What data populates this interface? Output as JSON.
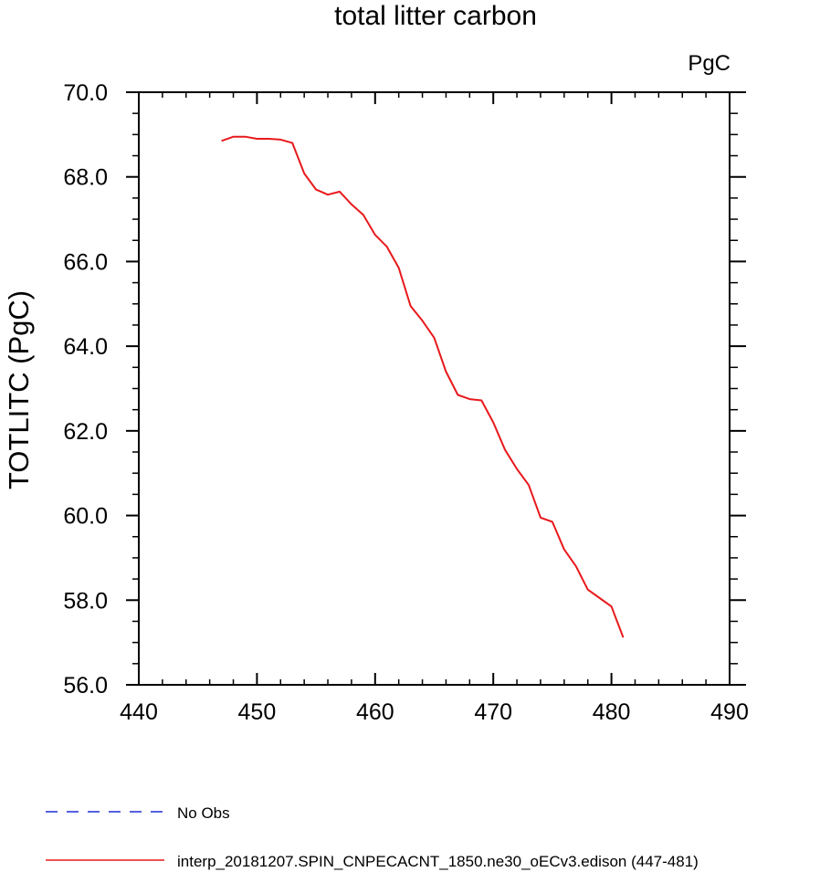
{
  "chart_data": {
    "type": "line",
    "title": "total litter carbon",
    "units_label": "PgC",
    "xlabel": "",
    "ylabel": "TOTLITC  (PgC)",
    "xlim": [
      440,
      490
    ],
    "ylim": [
      56.0,
      70.0
    ],
    "x_ticks": [
      440,
      450,
      460,
      470,
      480,
      490
    ],
    "x_tick_labels": [
      "440",
      "450",
      "460",
      "470",
      "480",
      "490"
    ],
    "y_ticks": [
      56,
      58,
      60,
      62,
      64,
      66,
      68,
      70
    ],
    "y_tick_labels": [
      "56.0",
      "58.0",
      "60.0",
      "62.0",
      "64.0",
      "66.0",
      "68.0",
      "70.0"
    ],
    "x_minor_step": 2,
    "y_minor_step": 0.5,
    "grid": false,
    "legend_position": "bottom-left",
    "series": [
      {
        "name": "No Obs",
        "color": "#1f2fd6",
        "style": "dashed",
        "x": [],
        "values": []
      },
      {
        "name": "interp_20181207.SPIN_CNPECACNT_1850.ne30_oECv3.edison (447-481)",
        "color": "#e8191c",
        "style": "solid",
        "x": [
          447,
          448,
          449,
          450,
          451,
          452,
          453,
          454,
          455,
          456,
          457,
          458,
          459,
          460,
          461,
          462,
          463,
          464,
          465,
          466,
          467,
          468,
          469,
          470,
          471,
          472,
          473,
          474,
          475,
          476,
          477,
          478,
          479,
          480,
          481
        ],
        "values": [
          68.85,
          68.95,
          68.95,
          68.9,
          68.9,
          68.88,
          68.8,
          68.08,
          67.7,
          67.58,
          67.65,
          67.35,
          67.1,
          66.63,
          66.35,
          65.85,
          64.95,
          64.6,
          64.2,
          63.4,
          62.85,
          62.75,
          62.72,
          62.2,
          61.55,
          61.1,
          60.72,
          59.95,
          59.85,
          59.2,
          58.8,
          58.25,
          58.05,
          57.85,
          57.12
        ]
      }
    ]
  }
}
